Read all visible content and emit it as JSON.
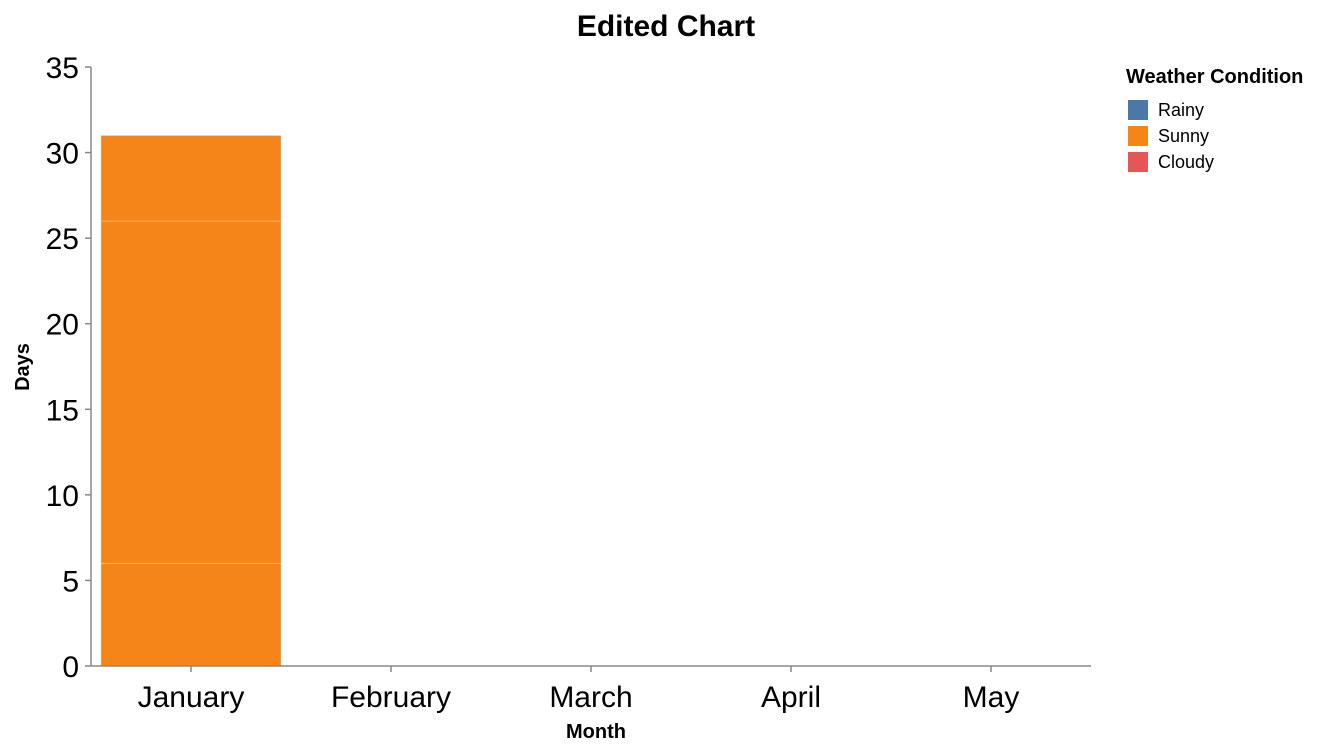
{
  "chart_data": {
    "type": "bar",
    "stacked": true,
    "title": "Edited Chart",
    "xlabel": "Month",
    "ylabel": "Days",
    "categories": [
      "January",
      "February",
      "March",
      "April",
      "May"
    ],
    "ylim": [
      0,
      35
    ],
    "yticks": [
      0,
      5,
      10,
      15,
      20,
      25,
      30,
      35
    ],
    "grid": false,
    "legend": {
      "title": "Weather Condition",
      "position": "top-right",
      "entries": [
        {
          "name": "Rainy",
          "color": "#4c78a8"
        },
        {
          "name": "Sunny",
          "color": "#f58518"
        },
        {
          "name": "Cloudy",
          "color": "#e45756"
        }
      ]
    },
    "segments": [
      {
        "category": "January",
        "series": "Sunny",
        "color": "#f58518",
        "start": 0,
        "end": 6
      },
      {
        "category": "January",
        "series": "Sunny",
        "color": "#f58518",
        "start": 6,
        "end": 26
      },
      {
        "category": "January",
        "series": "Sunny",
        "color": "#f58518",
        "start": 26,
        "end": 31
      }
    ],
    "series": [
      {
        "name": "Rainy",
        "values": [
          0,
          0,
          0,
          0,
          0
        ]
      },
      {
        "name": "Sunny",
        "values": [
          31,
          0,
          0,
          0,
          0
        ]
      },
      {
        "name": "Cloudy",
        "values": [
          0,
          0,
          0,
          0,
          0
        ]
      }
    ]
  }
}
